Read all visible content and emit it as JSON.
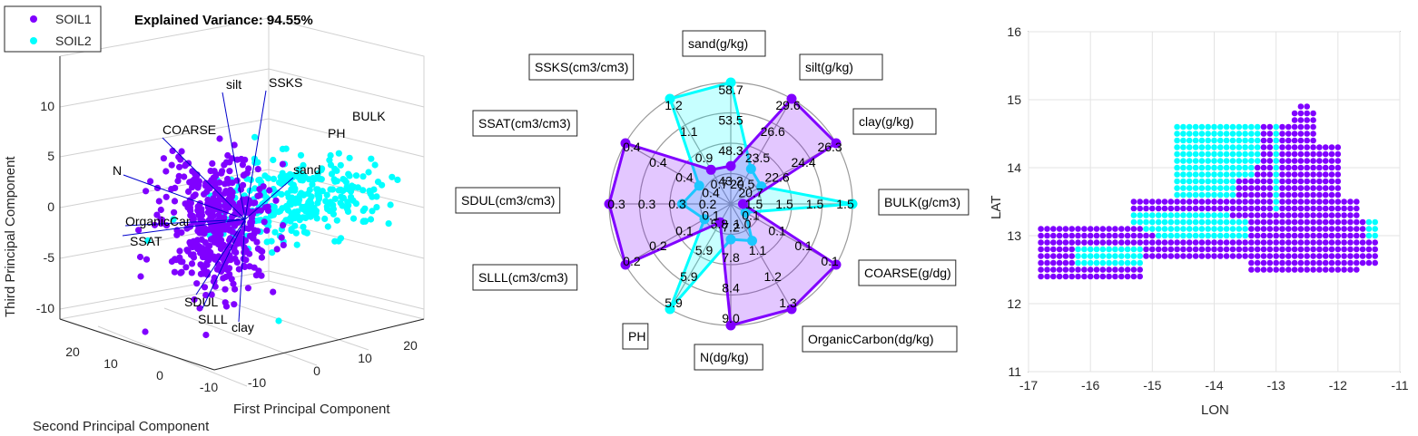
{
  "colors": {
    "soil1": "#8000ff",
    "soil2": "#00ffff",
    "soil1_stroke": "#6a00e0",
    "soil2_stroke": "#00e5e5",
    "grid": "#d0d0d0",
    "loading": "#0000cc"
  },
  "chart_data": [
    {
      "type": "scatter",
      "subtype": "pca-biplot-3d",
      "title": "Explained Variance: 94.55%",
      "xlabel": "First Principal Component",
      "ylabel": "Second Principal Component",
      "zlabel": "Third Principal Component",
      "x_ticks": [
        "-10",
        "0",
        "10",
        "20"
      ],
      "y_ticks": [
        "20",
        "10",
        "0",
        "-10"
      ],
      "z_ticks": [
        "10",
        "5",
        "0",
        "-5",
        "-10"
      ],
      "legend": {
        "location": "top-left",
        "entries": [
          "SOIL1",
          "SOIL2"
        ]
      },
      "loadings": [
        "silt",
        "SSKS",
        "BULK",
        "PH",
        "COARSE",
        "sand",
        "N",
        "OrganicCar",
        "SSAT",
        "SDUL",
        "SLLL",
        "clay"
      ],
      "series": [
        {
          "name": "SOIL1",
          "description": "cluster centered near the origin, spreading toward negative first component",
          "count_approx": 450
        },
        {
          "name": "SOIL2",
          "description": "cluster toward positive first component",
          "count_approx": 300
        }
      ]
    },
    {
      "type": "radar",
      "axes": [
        "sand(g/kg)",
        "silt(g/kg)",
        "clay(g/kg)",
        "BULK(g/cm3)",
        "COARSE(g/dg)",
        "OrganicCarbon(dg/kg)",
        "N(dg/kg)",
        "PH",
        "SLLL(cm3/cm3)",
        "SDUL(cm3/cm3)",
        "SSAT(cm3/cm3)",
        "SSKS(cm3/cm3)"
      ],
      "ring_labels": [
        [
          "43.2",
          "48.3",
          "53.5",
          "58.7"
        ],
        [
          "20.5",
          "23.5",
          "26.6",
          "29.6"
        ],
        [
          "20.7",
          "22.6",
          "24.4",
          "26.3"
        ],
        [
          "1.5",
          "1.5",
          "1.5",
          "1.5"
        ],
        [
          "0.1",
          "0.1",
          "0.1",
          "0.1"
        ],
        [
          "1.0",
          "1.1",
          "1.2",
          "1.3"
        ],
        [
          "7.2",
          "7.8",
          "8.4",
          "9.0"
        ],
        [
          "5.8",
          "5.9",
          "5.9",
          "5.9"
        ],
        [
          "0.1",
          "0.1",
          "0.2",
          "0.2"
        ],
        [
          "0.2",
          "0.3",
          "0.3",
          "0.3"
        ],
        [
          "0.4",
          "0.4",
          "0.4",
          "0.4"
        ],
        [
          "0.7",
          "0.9",
          "1.1",
          "1.2"
        ]
      ],
      "series": [
        {
          "name": "SOIL1",
          "values": [
            44.5,
            29.6,
            26.3,
            1.48,
            0.1,
            1.3,
            9.0,
            5.79,
            0.2,
            0.3,
            0.4,
            0.75
          ]
        },
        {
          "name": "SOIL2",
          "values": [
            58.7,
            21.5,
            21.0,
            1.5,
            0.05,
            1.04,
            7.3,
            5.9,
            0.1,
            0.22,
            0.37,
            1.2
          ]
        }
      ]
    },
    {
      "type": "scatter",
      "subtype": "geographic",
      "xlabel": "LON",
      "ylabel": "LAT",
      "xlim": [
        -17,
        -11
      ],
      "ylim": [
        11,
        16
      ],
      "x_ticks": [
        "-17",
        "-16",
        "-15",
        "-14",
        "-13",
        "-12",
        "-11"
      ],
      "y_ticks": [
        "16",
        "15",
        "14",
        "13",
        "12",
        "11"
      ],
      "grid": true,
      "series": [
        {
          "name": "SOIL1",
          "description": "grid points across western Senegal/Gambia region"
        },
        {
          "name": "SOIL2",
          "description": "grid points mostly in northern-central and river-valley bands"
        }
      ]
    }
  ]
}
